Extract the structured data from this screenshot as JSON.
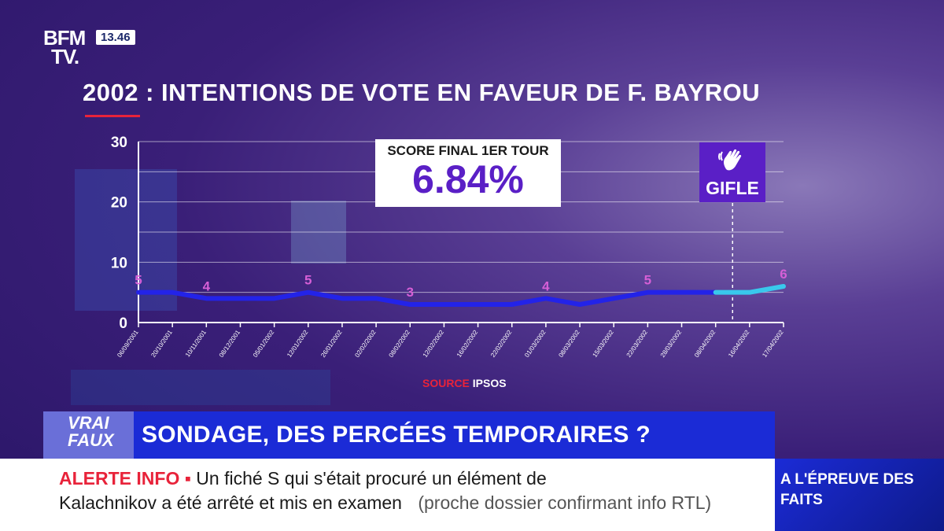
{
  "header": {
    "logo_line1": "BFM",
    "logo_line2": "TV.",
    "clock": "13.46"
  },
  "chart_data": {
    "type": "line",
    "title": "2002 : INTENTIONS DE VOTE EN FAVEUR DE F. BAYROU",
    "ylim": [
      0,
      30
    ],
    "yticks": [
      0,
      10,
      20,
      30
    ],
    "x": [
      "06/09/2001",
      "20/10/2001",
      "10/11/2001",
      "08/12/2001",
      "05/01/2002",
      "12/01/2002",
      "26/01/2002",
      "02/02/2002",
      "08/02/2002",
      "12/02/2002",
      "16/02/2002",
      "22/02/2002",
      "01/03/2002",
      "08/03/2002",
      "15/03/2002",
      "22/03/2002",
      "28/03/2002",
      "08/04/2002",
      "16/04/2002",
      "17/04/2002"
    ],
    "series": [
      {
        "values": [
          5,
          5,
          4,
          4,
          4,
          5,
          4,
          4,
          3,
          3,
          3,
          3,
          4,
          3,
          4,
          5,
          5,
          5,
          5,
          6
        ]
      }
    ],
    "data_labels": [
      {
        "index": 0,
        "text": "5"
      },
      {
        "index": 2,
        "text": "4"
      },
      {
        "index": 5,
        "text": "5"
      },
      {
        "index": 8,
        "text": "3"
      },
      {
        "index": 12,
        "text": "4"
      },
      {
        "index": 15,
        "text": "5"
      },
      {
        "index": 19,
        "text": "6"
      }
    ],
    "event_marker": {
      "label": "GIFLE",
      "between": [
        "08/04/2002",
        "16/04/2002"
      ]
    },
    "source_label": "SOURCE",
    "source_name": "IPSOS",
    "colors": {
      "line": "#2323e8",
      "line_after_event": "#39c8ec",
      "labels": "#d65fd6",
      "axis": "#ffffff"
    }
  },
  "score_box": {
    "label": "SCORE FINAL 1ER TOUR",
    "value": "6.84%"
  },
  "banner": {
    "tag": "VRAI FAUX",
    "headline": "SONDAGE, DES PERCÉES TEMPORAIRES ?"
  },
  "ticker": {
    "alert_label": "ALERTE INFO",
    "line1": "Un fiché S qui s'était procuré un élément de",
    "line2": "Kalachnikov a été arrêté et mis en examen",
    "parenthetical": "(proche dossier confirmant info RTL)"
  },
  "corner": {
    "text": "A L'ÉPREUVE DES FAITS"
  }
}
